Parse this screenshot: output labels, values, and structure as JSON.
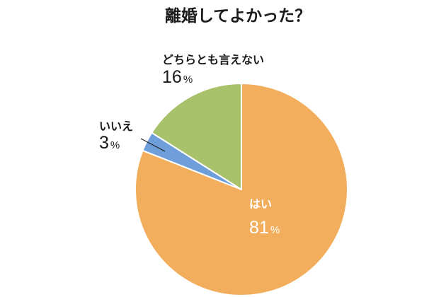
{
  "chart_data": {
    "type": "pie",
    "title": "離婚してよかった？",
    "unit": "%",
    "slices": [
      {
        "label": "はい",
        "value": 81,
        "color": "#f2ae5c",
        "label_placement": "inside"
      },
      {
        "label": "いいえ",
        "value": 3,
        "color": "#6f9fdb",
        "label_placement": "outside-left"
      },
      {
        "label": "どちらとも言えない",
        "value": 16,
        "color": "#a8c26c",
        "label_placement": "outside-top"
      }
    ],
    "start": "12 o'clock",
    "direction": "clockwise",
    "slice_border_color": "#ffffff",
    "legend": "none"
  }
}
